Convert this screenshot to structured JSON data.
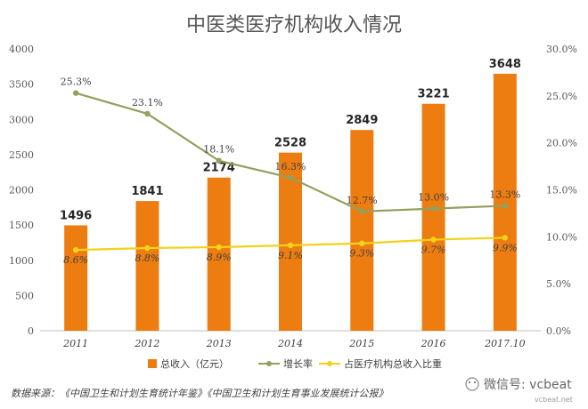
{
  "chart_data": {
    "type": "bar",
    "title": "中医类医疗机构收入情况",
    "categories": [
      "2011",
      "2012",
      "2013",
      "2014",
      "2015",
      "2016",
      "2017.10"
    ],
    "ylim_left": [
      0,
      4000
    ],
    "yticks_left": [
      "0",
      "500",
      "1000",
      "1500",
      "2000",
      "2500",
      "3000",
      "3500",
      "4000"
    ],
    "ylim_right": [
      0,
      30
    ],
    "yticks_right": [
      "0.0%",
      "5.0%",
      "10.0%",
      "15.0%",
      "20.0%",
      "25.0%",
      "30.0%"
    ],
    "series": [
      {
        "name": "总收入（亿元）",
        "kind": "bar",
        "color": "#ED7D10",
        "values": [
          1496,
          1841,
          2174,
          2528,
          2849,
          3221,
          3648
        ],
        "labels": [
          "1496",
          "1841",
          "2174",
          "2528",
          "2849",
          "3221",
          "3648"
        ]
      },
      {
        "name": "增长率",
        "kind": "line",
        "color": "#92A05E",
        "values": [
          25.3,
          23.1,
          18.1,
          16.3,
          12.7,
          13.0,
          13.3
        ],
        "labels": [
          "25.3%",
          "23.1%",
          "18.1%",
          "16.3%",
          "12.7%",
          "13.0%",
          "13.3%"
        ]
      },
      {
        "name": "占医疗机构总收入比重",
        "kind": "line",
        "color": "#F2D21B",
        "values": [
          8.6,
          8.8,
          8.9,
          9.1,
          9.3,
          9.7,
          9.9
        ],
        "labels": [
          "8.6%",
          "8.8%",
          "8.9%",
          "9.1%",
          "9.3%",
          "9.7%",
          "9.9%"
        ]
      }
    ],
    "grid": false,
    "legend_position": "bottom"
  },
  "source_text": "数据来源：《中国卫生和计划生育统计年鉴》《中国卫生和计划生育事业发展统计公报》",
  "watermark": {
    "text": "微信号: vcbeat",
    "url": "vcbeat.net"
  }
}
